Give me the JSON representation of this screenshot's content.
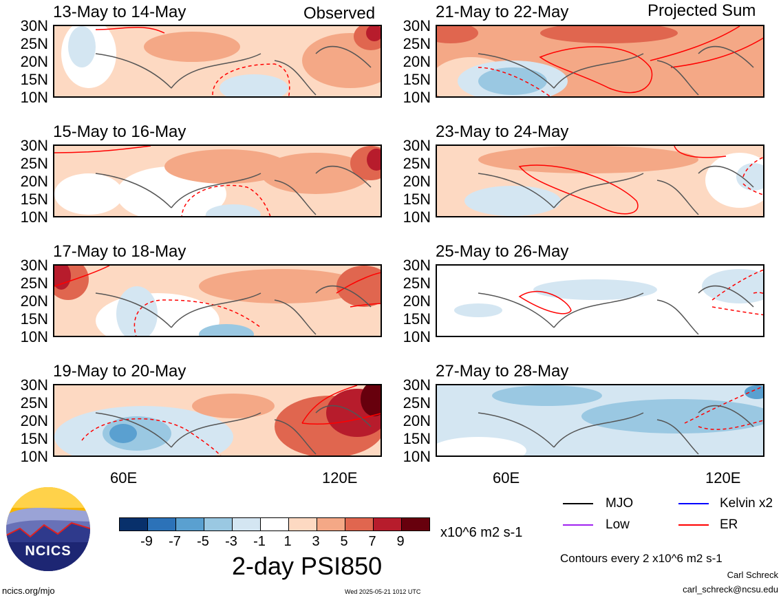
{
  "header": {
    "observed_label": "Observed",
    "projected_label": "Projected Sum"
  },
  "panels_left": [
    {
      "title": "13-May to 14-May"
    },
    {
      "title": "15-May to 16-May"
    },
    {
      "title": "17-May to 18-May"
    },
    {
      "title": "19-May to 20-May"
    }
  ],
  "panels_right": [
    {
      "title": "21-May to 22-May"
    },
    {
      "title": "23-May to 24-May"
    },
    {
      "title": "25-May to 26-May"
    },
    {
      "title": "27-May to 28-May"
    }
  ],
  "lat_labels": [
    "30N",
    "25N",
    "20N",
    "15N",
    "10N"
  ],
  "lon_labels": [
    "60E",
    "120E"
  ],
  "colorbar": {
    "colors": [
      "#08306b",
      "#2c72b8",
      "#5aa0d0",
      "#9ac8e2",
      "#d4e6f2",
      "#ffffff",
      "#fdd9c2",
      "#f4a886",
      "#e0664f",
      "#b71c2c",
      "#67000d"
    ],
    "ticks": [
      "-9",
      "-7",
      "-5",
      "-3",
      "-1",
      "1",
      "3",
      "5",
      "7",
      "9"
    ],
    "units": "x10^6 m2 s-1",
    "title": "2-day PSI850"
  },
  "legend": {
    "mjo": "MJO",
    "kelvin": "Kelvin x2",
    "low": "Low",
    "er": "ER",
    "colors": {
      "mjo": "#000000",
      "kelvin": "#0000ff",
      "low": "#a020f0",
      "er": "#ff0000"
    }
  },
  "footer": {
    "contours": "Contours every 2 x10^6 m2 s-1",
    "author": "Carl Schreck",
    "email": "carl_schreck@ncsu.edu",
    "site": "ncics.org/mjo",
    "timestamp": "Wed 2025-05-21 1012 UTC",
    "logo_text": "NCICS"
  }
}
